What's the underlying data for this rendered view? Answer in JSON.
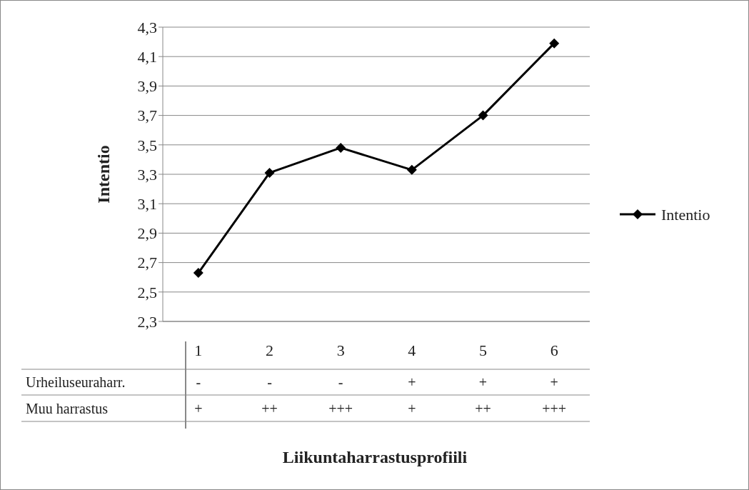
{
  "chart_data": {
    "type": "line",
    "xlabel": "Liikuntaharrastusprofiili",
    "ylabel": "Intentio",
    "categories": [
      "1\n-\n+",
      "2\n-\n++",
      "3\n-\n+++",
      "4\n+\n+",
      "5\n+\n++",
      "6\n+\n+++"
    ],
    "series": [
      {
        "name": "Intentio",
        "color": "#000000",
        "values": [
          2.63,
          3.31,
          3.48,
          3.33,
          3.7,
          4.19
        ]
      }
    ],
    "annotations": [
      "Urheiluseuraharr.",
      "Muu harrastus"
    ],
    "ylim": [
      2.3,
      4.3
    ],
    "yticks": [
      {
        "value": 2.3,
        "label": "2,3"
      },
      {
        "value": 2.5,
        "label": "2,5"
      },
      {
        "value": 2.7,
        "label": "2,7"
      },
      {
        "value": 2.9,
        "label": "2,9"
      },
      {
        "value": 3.1,
        "label": "3,1"
      },
      {
        "value": 3.3,
        "label": "3,3"
      },
      {
        "value": 3.5,
        "label": "3,5"
      },
      {
        "value": 3.7,
        "label": "3,7"
      },
      {
        "value": 3.9,
        "label": "3,9"
      },
      {
        "value": 4.1,
        "label": "4,1"
      },
      {
        "value": 4.3,
        "label": "4,3"
      }
    ],
    "grid": "y",
    "legend": "right",
    "marker": "diamond",
    "line_style": "solid"
  }
}
